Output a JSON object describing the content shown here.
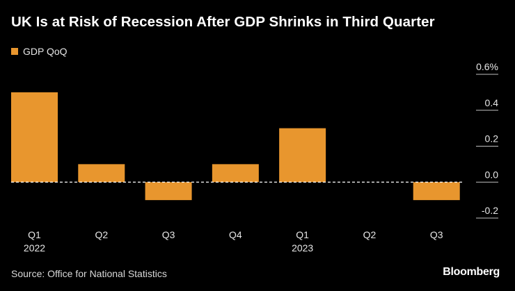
{
  "header": {
    "title": "UK Is at Risk of Recession After GDP Shrinks in Third Quarter"
  },
  "colors": {
    "bar": "#E8962E",
    "background": "#000000",
    "grid": "#ffffff"
  },
  "chart_data": {
    "type": "bar",
    "title": "UK Is at Risk of Recession After GDP Shrinks in Third Quarter",
    "legend": [
      "GDP QoQ"
    ],
    "legend_position": "top-left",
    "series": [
      {
        "name": "GDP QoQ",
        "values": [
          0.5,
          0.1,
          -0.1,
          0.1,
          0.3,
          0.0,
          -0.1
        ]
      }
    ],
    "categories": [
      "Q1",
      "Q2",
      "Q3",
      "Q4",
      "Q1",
      "Q2",
      "Q3"
    ],
    "category_groups": [
      "2022",
      "",
      "",
      "",
      "2023",
      "",
      ""
    ],
    "y_ticks": [
      0.6,
      0.4,
      0.2,
      0.0,
      -0.2
    ],
    "y_tick_labels": [
      "0.6%",
      "0.4",
      "0.2",
      "0.0",
      "-0.2"
    ],
    "ylim": [
      -0.2,
      0.6
    ],
    "xlabel": "",
    "ylabel": "",
    "zero_line": "dashed",
    "y_axis_side": "right"
  },
  "footer": {
    "source": "Source: Office for National Statistics",
    "brand": "Bloomberg"
  }
}
